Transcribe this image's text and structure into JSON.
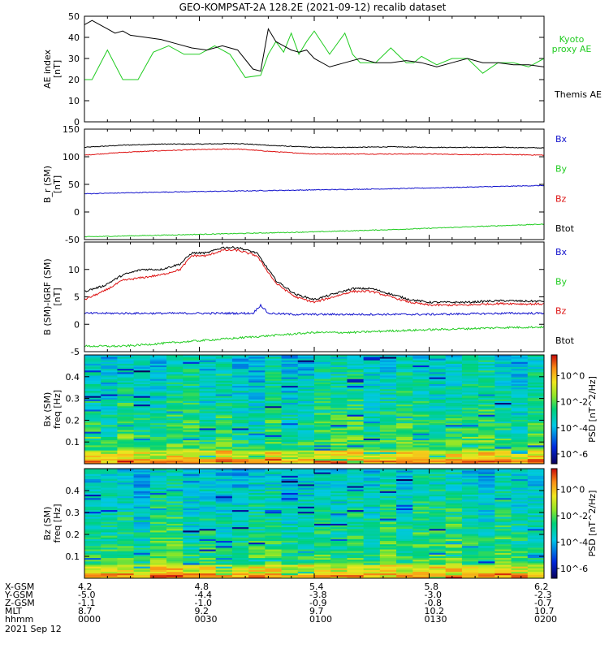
{
  "title": "GEO-KOMPSAT-2A 128.2E (2021-09-12) recalib dataset",
  "colors": {
    "black": "#000000",
    "green": "#22cc22",
    "red": "#dd1111",
    "blue": "#1111cc"
  },
  "chart_data": [
    {
      "type": "line",
      "ylabel": "AE index [nT]",
      "ylim": [
        0,
        50
      ],
      "yticks": [
        0,
        10,
        20,
        30,
        40,
        50
      ],
      "x_minutes_range": [
        0,
        120
      ],
      "legend": [
        {
          "text": "Kyoto",
          "color": "green"
        },
        {
          "text": "proxy AE",
          "color": "green"
        },
        {
          "text": "Themis AE",
          "color": "black"
        }
      ],
      "series": [
        {
          "name": "Kyoto proxy AE",
          "color": "green",
          "x": [
            0,
            2,
            6,
            10,
            14,
            18,
            22,
            26,
            30,
            34,
            38,
            42,
            46,
            48,
            50,
            52,
            54,
            56,
            58,
            60,
            64,
            68,
            70,
            72,
            76,
            80,
            84,
            86,
            88,
            92,
            96,
            100,
            104,
            108,
            112,
            116,
            120
          ],
          "y": [
            20,
            20,
            34,
            20,
            20,
            33,
            36,
            32,
            32,
            36,
            32,
            21,
            22,
            32,
            38,
            33,
            42,
            32,
            38,
            43,
            32,
            42,
            32,
            28,
            28,
            35,
            28,
            28,
            31,
            27,
            30,
            30,
            23,
            28,
            28,
            26,
            30
          ]
        },
        {
          "name": "Themis AE",
          "color": "black",
          "x": [
            0,
            2,
            4,
            6,
            8,
            10,
            12,
            16,
            20,
            24,
            28,
            32,
            36,
            40,
            44,
            46,
            48,
            50,
            52,
            54,
            56,
            58,
            60,
            64,
            68,
            72,
            76,
            80,
            84,
            88,
            92,
            96,
            100,
            104,
            108,
            112,
            116,
            120
          ],
          "y": [
            46,
            48,
            46,
            44,
            42,
            43,
            41,
            40,
            39,
            37,
            35,
            34,
            36,
            34,
            25,
            24,
            44,
            38,
            36,
            34,
            33,
            34,
            30,
            26,
            28,
            30,
            28,
            28,
            29,
            28,
            26,
            28,
            30,
            28,
            28,
            27,
            27,
            26
          ]
        }
      ]
    },
    {
      "type": "line",
      "ylabel": "B_r (SM) [nT]",
      "ylim": [
        -50,
        150
      ],
      "yticks": [
        -50,
        0,
        50,
        100,
        150
      ],
      "x_minutes_range": [
        0,
        120
      ],
      "legend": [
        {
          "text": "Bx",
          "color": "blue"
        },
        {
          "text": "By",
          "color": "green"
        },
        {
          "text": "Bz",
          "color": "red"
        },
        {
          "text": "Btot",
          "color": "black"
        }
      ],
      "series": [
        {
          "name": "Btot",
          "color": "black",
          "x": [
            0,
            10,
            20,
            30,
            40,
            50,
            60,
            70,
            80,
            90,
            100,
            110,
            120
          ],
          "y": [
            117,
            121,
            123,
            123,
            124,
            120,
            117,
            117,
            118,
            117,
            117,
            117,
            116
          ]
        },
        {
          "name": "Bz",
          "color": "red",
          "x": [
            0,
            10,
            20,
            30,
            40,
            50,
            60,
            70,
            80,
            90,
            100,
            110,
            120
          ],
          "y": [
            103,
            108,
            111,
            113,
            114,
            109,
            105,
            105,
            105,
            105,
            104,
            104,
            103
          ]
        },
        {
          "name": "Bx",
          "color": "blue",
          "x": [
            0,
            20,
            40,
            60,
            80,
            100,
            120
          ],
          "y": [
            33,
            36,
            38,
            40,
            42,
            45,
            48
          ]
        },
        {
          "name": "By",
          "color": "green",
          "x": [
            0,
            20,
            40,
            60,
            80,
            100,
            120
          ],
          "y": [
            -45,
            -42,
            -39,
            -36,
            -32,
            -27,
            -22
          ]
        }
      ]
    },
    {
      "type": "line",
      "ylabel": "B (SM)-IGRF (SM) [nT]",
      "ylim": [
        -5,
        15
      ],
      "yticks": [
        -5,
        0,
        5,
        10
      ],
      "x_minutes_range": [
        0,
        120
      ],
      "legend": [
        {
          "text": "Bx",
          "color": "blue"
        },
        {
          "text": "By",
          "color": "green"
        },
        {
          "text": "Bz",
          "color": "red"
        },
        {
          "text": "Btot",
          "color": "black"
        }
      ],
      "series": [
        {
          "name": "Btot",
          "color": "black",
          "x": [
            0,
            5,
            10,
            15,
            20,
            25,
            28,
            32,
            36,
            40,
            45,
            48,
            50,
            52,
            55,
            60,
            65,
            70,
            75,
            80,
            85,
            90,
            95,
            100,
            105,
            110,
            115,
            120
          ],
          "y": [
            6,
            7,
            9,
            10,
            10,
            11,
            13,
            13,
            14,
            14,
            13,
            10,
            8,
            7,
            5.5,
            4.5,
            5.5,
            6.5,
            6.5,
            5.5,
            4.5,
            4,
            4,
            4,
            4.2,
            4.3,
            4.2,
            4.2
          ]
        },
        {
          "name": "Bz",
          "color": "red",
          "x": [
            0,
            5,
            10,
            15,
            20,
            25,
            28,
            32,
            36,
            40,
            45,
            48,
            50,
            52,
            55,
            60,
            65,
            70,
            75,
            80,
            85,
            90,
            95,
            100,
            105,
            110,
            115,
            120
          ],
          "y": [
            4.5,
            6,
            8,
            8.5,
            9,
            10,
            12.5,
            12.5,
            13.5,
            13.5,
            12.5,
            9.5,
            7.5,
            6.5,
            5,
            4,
            5,
            6,
            6,
            5,
            4,
            3.5,
            3.5,
            3.5,
            3.7,
            3.8,
            3.7,
            3.7
          ]
        },
        {
          "name": "Bx",
          "color": "blue",
          "x": [
            0,
            10,
            20,
            30,
            40,
            44,
            46,
            48,
            55,
            60,
            70,
            80,
            90,
            100,
            110,
            120
          ],
          "y": [
            2,
            2,
            2,
            2,
            2,
            2,
            3.5,
            2,
            1.8,
            1.8,
            1.8,
            1.8,
            1.8,
            1.9,
            2,
            2
          ]
        },
        {
          "name": "By",
          "color": "green",
          "x": [
            0,
            10,
            20,
            30,
            40,
            50,
            60,
            70,
            80,
            90,
            100,
            110,
            120
          ],
          "y": [
            -4,
            -4,
            -3.5,
            -3,
            -2.5,
            -2,
            -1.5,
            -1.5,
            -1.2,
            -1,
            -0.8,
            -0.6,
            -0.5
          ]
        }
      ]
    },
    {
      "type": "heatmap",
      "ylabel": "Bx (SM) freq [Hz]",
      "yticks": [
        0.1,
        0.2,
        0.3,
        0.4
      ],
      "ylim": [
        0,
        0.5
      ],
      "colorbar_label": "PSD [nT^2/Hz]",
      "colorbar_ticks": [
        "10^0",
        "10^-2",
        "10^-4",
        "10^-6"
      ]
    },
    {
      "type": "heatmap",
      "ylabel": "Bz (SM) freq [Hz]",
      "yticks": [
        0.1,
        0.2,
        0.3,
        0.4
      ],
      "ylim": [
        0,
        0.5
      ],
      "colorbar_label": "PSD [nT^2/Hz]",
      "colorbar_ticks": [
        "10^0",
        "10^-2",
        "10^-4",
        "10^-6"
      ]
    }
  ],
  "ephemeris": {
    "row_labels": [
      "X-GSM",
      "Y-GSM",
      "Z-GSM",
      "MLT",
      "hhmm"
    ],
    "columns": [
      [
        "4.2",
        "-5.0",
        "-1.1",
        "8.7",
        "0000"
      ],
      [
        "4.8",
        "-4.4",
        "-1.0",
        "9.2",
        "0030"
      ],
      [
        "5.4",
        "-3.8",
        "-0.9",
        "9.7",
        "0100"
      ],
      [
        "5.8",
        "-3.0",
        "-0.8",
        "10.2",
        "0130"
      ],
      [
        "6.2",
        "-2.3",
        "-0.7",
        "10.7",
        "0200"
      ]
    ],
    "date": "2021 Sep 12"
  }
}
